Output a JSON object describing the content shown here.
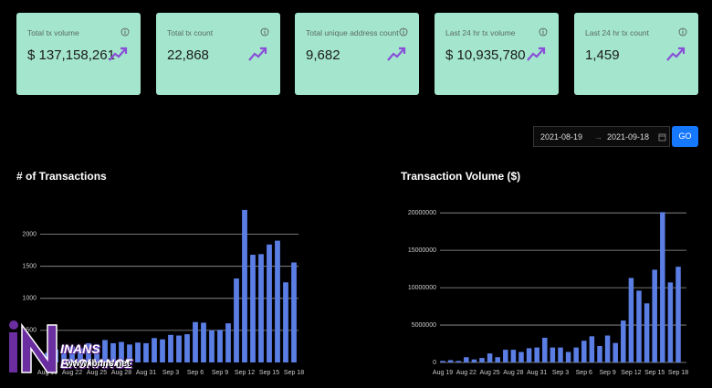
{
  "cards": [
    {
      "title": "Total tx volume",
      "value": "$ 137,158,261"
    },
    {
      "title": "Total tx count",
      "value": "22,868"
    },
    {
      "title": "Total unique address count",
      "value": "9,682"
    },
    {
      "title": "Last 24 hr tx volume",
      "value": "$ 10,935,780"
    },
    {
      "title": "Last 24 hr tx count",
      "value": "1,459"
    }
  ],
  "date_range": {
    "start": "2021-08-19",
    "end": "2021-09-18",
    "button": "GO"
  },
  "watermark": {
    "name": "INANS EXCHANGE",
    "url": "www.ibnns.net"
  },
  "chart_data": [
    {
      "type": "bar",
      "title": "# of Transactions",
      "color": "#5b7ee5",
      "grid": true,
      "categories": [
        "Aug 19",
        null,
        null,
        "Aug 22",
        null,
        null,
        "Aug 25",
        null,
        null,
        "Aug 28",
        null,
        null,
        "Aug 31",
        null,
        null,
        "Sep 3",
        null,
        null,
        "Sep 6",
        null,
        null,
        "Sep 9",
        null,
        null,
        "Sep 12",
        null,
        null,
        "Sep 15",
        null,
        null,
        "Sep 18"
      ],
      "values": [
        150,
        200,
        180,
        250,
        220,
        300,
        280,
        350,
        300,
        320,
        280,
        310,
        300,
        380,
        360,
        430,
        420,
        440,
        630,
        620,
        500,
        510,
        610,
        1310,
        2380,
        1680,
        1690,
        1840,
        1900,
        1250,
        1560
      ],
      "ylim": [
        0,
        2450
      ],
      "yticks": [
        500,
        1000,
        1500,
        2000
      ]
    },
    {
      "type": "bar",
      "title": "Transaction Volume ($)",
      "color": "#5b7ee5",
      "grid": true,
      "categories": [
        "Aug 19",
        null,
        null,
        "Aug 22",
        null,
        null,
        "Aug 25",
        null,
        null,
        "Aug 28",
        null,
        null,
        "Aug 31",
        null,
        null,
        "Sep 3",
        null,
        null,
        "Sep 6",
        null,
        null,
        "Sep 9",
        null,
        null,
        "Sep 12",
        null,
        null,
        "Sep 15",
        null,
        null,
        "Sep 18"
      ],
      "values": [
        200000,
        300000,
        200000,
        700000,
        400000,
        600000,
        1200000,
        700000,
        1700000,
        1700000,
        1400000,
        1900000,
        2000000,
        3300000,
        2000000,
        2000000,
        1400000,
        2000000,
        2900000,
        3500000,
        2200000,
        3600000,
        2600000,
        5600000,
        11300000,
        9600000,
        7900000,
        12400000,
        20100000,
        10700000,
        12800000
      ],
      "ylim": [
        0,
        21000000
      ],
      "yticks": [
        0,
        5000000,
        10000000,
        15000000,
        20000000
      ]
    }
  ]
}
